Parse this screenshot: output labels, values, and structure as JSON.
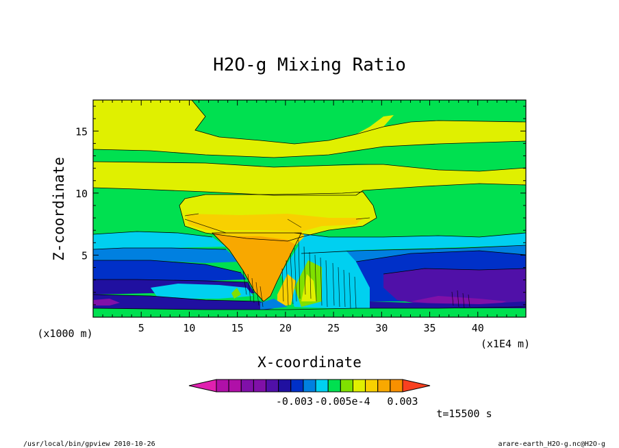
{
  "chart_data": {
    "type": "heatmap",
    "title": "H2O-g Mixing Ratio",
    "xlabel": "X-coordinate",
    "ylabel": "Z-coordinate",
    "x_unit_left": "(x1000 m)",
    "x_unit_right": "(x1E4 m)",
    "x_ticks": [
      "5",
      "10",
      "15",
      "20",
      "25",
      "30",
      "35",
      "40"
    ],
    "x_tick_values": [
      5,
      10,
      15,
      20,
      25,
      30,
      35,
      40
    ],
    "y_ticks": [
      "5",
      "10",
      "15"
    ],
    "y_tick_values": [
      5,
      10,
      15
    ],
    "xlim": [
      0,
      45
    ],
    "ylim": [
      0,
      17.5
    ],
    "colorbar": {
      "labels": [
        "-0.003",
        "-0.005e-4",
        "0.003"
      ],
      "colors": [
        "#e020b0",
        "#b010a8",
        "#b010a8",
        "#8010a8",
        "#8010a8",
        "#5010a8",
        "#2010a0",
        "#0030c8",
        "#0080e0",
        "#00d0f0",
        "#00e050",
        "#80e000",
        "#e0f000",
        "#f8d000",
        "#f8a800",
        "#f89000",
        "#f84020"
      ]
    },
    "time_label": "t=15500 s",
    "footer_left": "/usr/local/bin/gpview  2010-10-26",
    "footer_right": "arare-earth_H2O-g.nc@H2O-g"
  }
}
